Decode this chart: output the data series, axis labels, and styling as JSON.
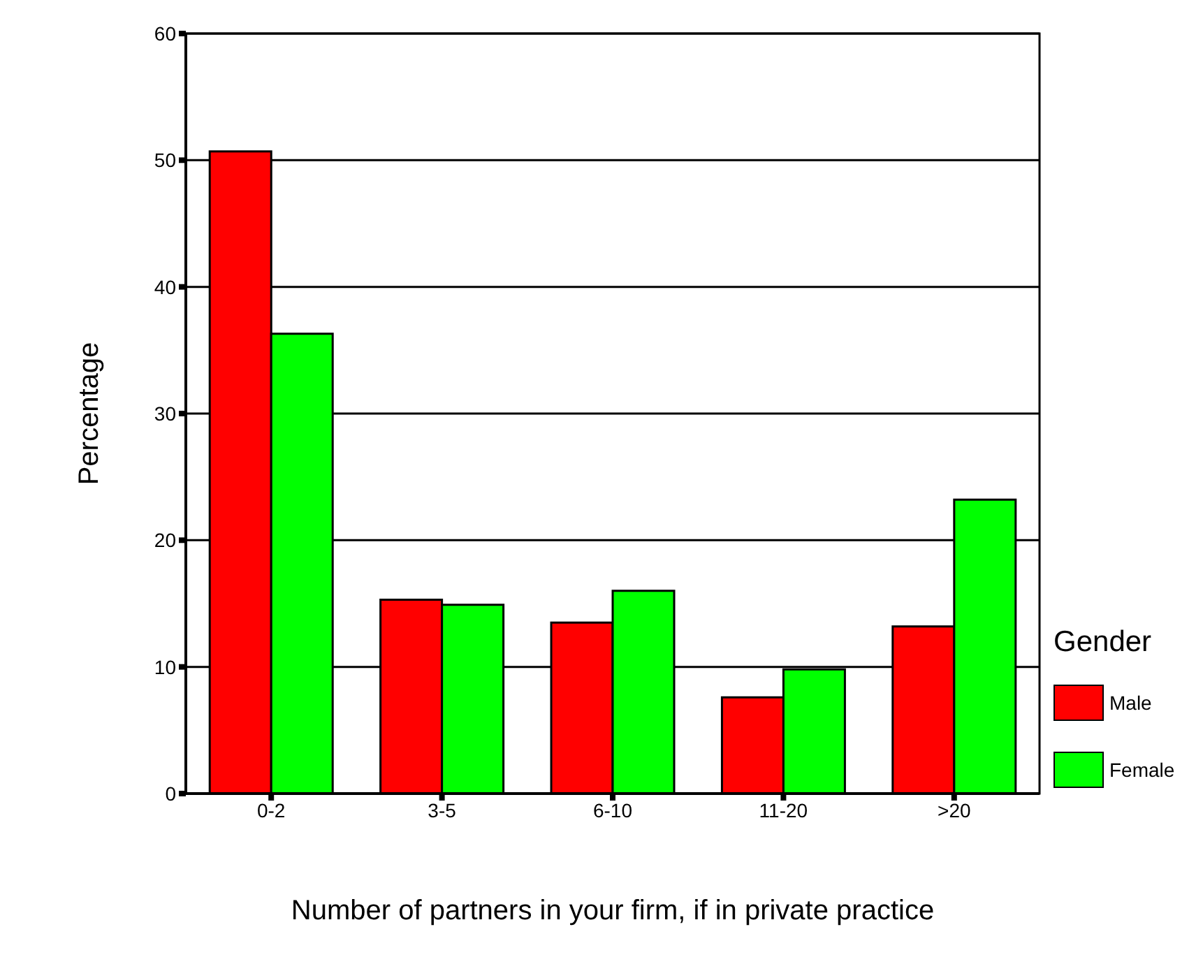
{
  "chart_data": {
    "type": "bar",
    "xlabel": "Number of partners in your firm, if in private practice",
    "ylabel": "Percentage",
    "legend_title": "Gender",
    "categories": [
      "0-2",
      "3-5",
      "6-10",
      "11-20",
      ">20"
    ],
    "series": [
      {
        "name": "Male",
        "color": "#ff0000",
        "values": [
          50.7,
          15.3,
          13.5,
          7.6,
          13.2
        ]
      },
      {
        "name": "Female",
        "color": "#00ff00",
        "values": [
          36.3,
          14.9,
          16.0,
          9.8,
          23.2
        ]
      }
    ],
    "ylim": [
      0,
      60
    ],
    "yticks": [
      0,
      10,
      20,
      30,
      40,
      50,
      60
    ],
    "grid": "y",
    "legend": "right"
  }
}
